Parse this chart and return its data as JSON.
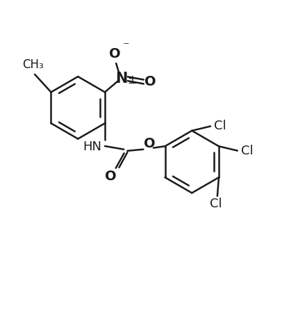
{
  "background_color": "#ffffff",
  "line_color": "#1a1a1a",
  "line_width": 1.8,
  "font_size": 13,
  "figsize": [
    4.29,
    4.8
  ],
  "dpi": 100,
  "xlim": [
    0,
    10
  ],
  "ylim": [
    0,
    11.2
  ]
}
